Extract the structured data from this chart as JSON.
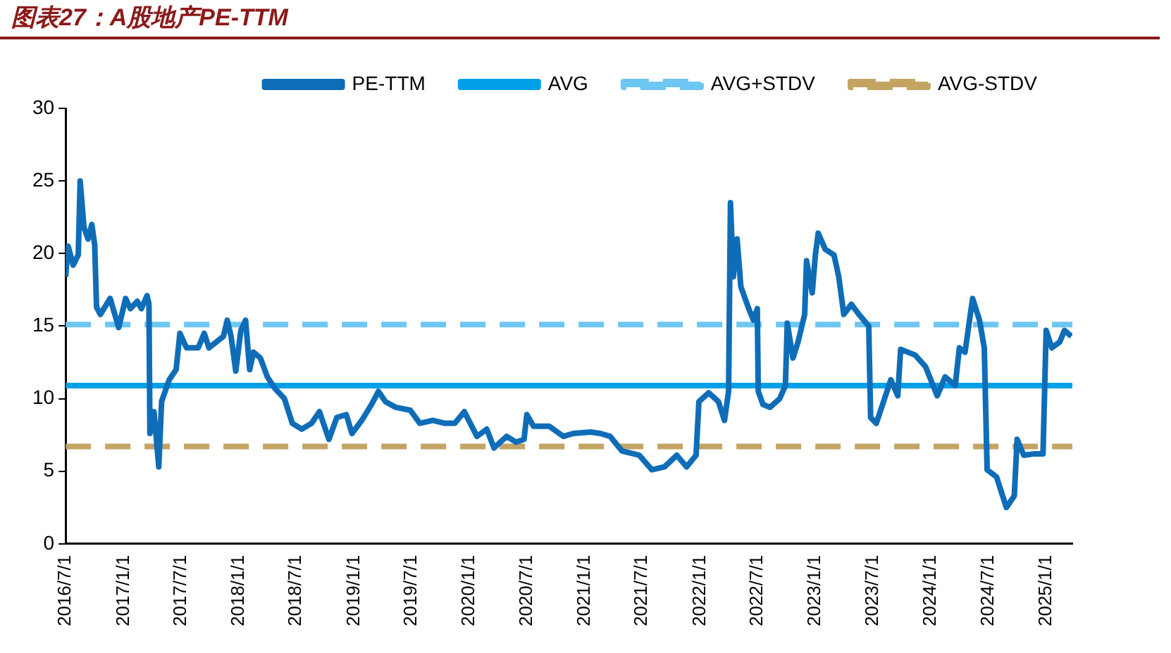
{
  "chart_data": {
    "type": "line",
    "title": "图表27：A股地产PE-TTM",
    "xlim": [
      "2016-07-01",
      "2025-03-25"
    ],
    "xticks": [
      {
        "value": "2016-07-01",
        "label": "2016/7/1"
      },
      {
        "value": "2017-01-01",
        "label": "2017/1/1"
      },
      {
        "value": "2017-07-01",
        "label": "2017/7/1"
      },
      {
        "value": "2018-01-01",
        "label": "2018/1/1"
      },
      {
        "value": "2018-07-01",
        "label": "2018/7/1"
      },
      {
        "value": "2019-01-01",
        "label": "2019/1/1"
      },
      {
        "value": "2019-07-01",
        "label": "2019/7/1"
      },
      {
        "value": "2020-01-01",
        "label": "2020/1/1"
      },
      {
        "value": "2020-07-01",
        "label": "2020/7/1"
      },
      {
        "value": "2021-01-01",
        "label": "2021/1/1"
      },
      {
        "value": "2021-07-01",
        "label": "2021/7/1"
      },
      {
        "value": "2022-01-01",
        "label": "2022/1/1"
      },
      {
        "value": "2022-07-01",
        "label": "2022/7/1"
      },
      {
        "value": "2023-01-01",
        "label": "2023/1/1"
      },
      {
        "value": "2023-07-01",
        "label": "2023/7/1"
      },
      {
        "value": "2024-01-01",
        "label": "2024/1/1"
      },
      {
        "value": "2024-07-01",
        "label": "2024/7/1"
      },
      {
        "value": "2025-01-01",
        "label": "2025/1/1"
      }
    ],
    "ylim": [
      0,
      30
    ],
    "yticks": [
      0,
      5,
      10,
      15,
      20,
      25,
      30
    ],
    "grid": false,
    "legend": "top",
    "series": [
      {
        "name": "PE-TTM",
        "color": "#0f6db8",
        "line_style": "solid",
        "x": [
          "2016-07-01",
          "2016-07-09",
          "2016-07-25",
          "2016-08-10",
          "2016-08-16",
          "2016-08-28",
          "2016-09-10",
          "2016-09-22",
          "2016-10-01",
          "2016-10-07",
          "2016-10-19",
          "2016-11-19",
          "2016-12-16",
          "2017-01-07",
          "2017-01-22",
          "2017-02-13",
          "2017-02-26",
          "2017-03-16",
          "2017-03-22",
          "2017-03-25",
          "2017-04-07",
          "2017-04-22",
          "2017-05-01",
          "2017-05-25",
          "2017-06-16",
          "2017-06-28",
          "2017-07-19",
          "2017-08-25",
          "2017-09-13",
          "2017-09-28",
          "2017-11-13",
          "2017-11-25",
          "2017-12-07",
          "2017-12-22",
          "2018-01-07",
          "2018-01-22",
          "2018-02-04",
          "2018-02-16",
          "2018-03-10",
          "2018-04-01",
          "2018-04-25",
          "2018-05-25",
          "2018-06-19",
          "2018-07-19",
          "2018-08-19",
          "2018-09-13",
          "2018-10-13",
          "2018-11-07",
          "2018-12-07",
          "2018-12-25",
          "2019-01-25",
          "2019-02-25",
          "2019-03-19",
          "2019-04-10",
          "2019-05-13",
          "2019-06-28",
          "2019-07-28",
          "2019-09-07",
          "2019-10-16",
          "2019-11-16",
          "2019-12-16",
          "2020-01-25",
          "2020-02-25",
          "2020-03-19",
          "2020-04-28",
          "2020-05-28",
          "2020-06-22",
          "2020-07-01",
          "2020-07-22",
          "2020-09-10",
          "2020-10-25",
          "2020-11-25",
          "2021-01-19",
          "2021-02-19",
          "2021-03-22",
          "2021-04-28",
          "2021-06-22",
          "2021-08-01",
          "2021-09-10",
          "2021-10-19",
          "2021-11-19",
          "2021-12-19",
          "2021-12-28",
          "2022-01-28",
          "2022-02-28",
          "2022-03-19",
          "2022-04-01",
          "2022-04-07",
          "2022-04-16",
          "2022-04-28",
          "2022-05-10",
          "2022-06-04",
          "2022-06-19",
          "2022-07-01",
          "2022-07-04",
          "2022-07-19",
          "2022-08-10",
          "2022-09-10",
          "2022-09-28",
          "2022-10-04",
          "2022-10-22",
          "2022-11-07",
          "2022-11-28",
          "2022-12-04",
          "2022-12-22",
          "2023-01-01",
          "2023-01-10",
          "2023-02-01",
          "2023-03-01",
          "2023-03-16",
          "2023-04-01",
          "2023-04-25",
          "2023-05-19",
          "2023-06-19",
          "2023-06-25",
          "2023-07-13",
          "2023-08-28",
          "2023-09-19",
          "2023-09-28",
          "2023-11-13",
          "2023-12-16",
          "2024-01-22",
          "2024-02-16",
          "2024-03-19",
          "2024-04-01",
          "2024-04-19",
          "2024-05-13",
          "2024-06-04",
          "2024-06-19",
          "2024-06-28",
          "2024-07-28",
          "2024-08-28",
          "2024-09-22",
          "2024-10-01",
          "2024-10-22",
          "2024-11-25",
          "2024-12-22",
          "2025-01-01",
          "2025-01-19",
          "2025-02-13",
          "2025-02-28",
          "2025-03-22"
        ],
        "values": [
          18.4,
          20.5,
          19.2,
          19.9,
          25.0,
          21.8,
          21.0,
          22.0,
          20.6,
          16.3,
          15.8,
          16.9,
          14.9,
          16.9,
          16.2,
          16.7,
          16.2,
          17.1,
          16.5,
          7.6,
          9.1,
          5.3,
          9.8,
          11.3,
          12.0,
          14.5,
          13.5,
          13.5,
          14.5,
          13.5,
          14.3,
          15.4,
          14.3,
          11.9,
          14.7,
          15.4,
          12.0,
          13.2,
          12.8,
          11.5,
          10.7,
          10.0,
          8.3,
          7.9,
          8.3,
          9.1,
          7.2,
          8.7,
          8.9,
          7.6,
          8.5,
          9.6,
          10.5,
          9.8,
          9.4,
          9.2,
          8.3,
          8.5,
          8.3,
          8.3,
          9.1,
          7.4,
          7.9,
          6.6,
          7.4,
          7.0,
          7.2,
          8.9,
          8.1,
          8.1,
          7.4,
          7.6,
          7.7,
          7.6,
          7.4,
          6.4,
          6.1,
          5.1,
          5.3,
          6.1,
          5.3,
          6.1,
          9.8,
          10.4,
          9.8,
          8.5,
          10.5,
          23.5,
          18.4,
          21.0,
          17.7,
          16.2,
          15.4,
          16.2,
          10.5,
          9.6,
          9.4,
          10.0,
          10.9,
          15.2,
          12.8,
          13.9,
          15.8,
          19.5,
          17.3,
          19.9,
          21.4,
          20.3,
          19.9,
          18.4,
          15.8,
          16.5,
          15.8,
          15.0,
          8.7,
          8.3,
          11.3,
          10.2,
          13.4,
          13.0,
          12.2,
          10.2,
          11.5,
          10.9,
          13.5,
          13.2,
          16.9,
          15.4,
          13.5,
          5.1,
          4.6,
          2.5,
          3.3,
          7.2,
          6.1,
          6.2,
          6.2,
          14.7,
          13.5,
          13.9,
          14.7,
          14.3
        ]
      },
      {
        "name": "AVG",
        "color": "#00a0e9",
        "line_style": "solid",
        "x": [
          "2016-07-01",
          "2025-03-25"
        ],
        "values": [
          10.9,
          10.9
        ]
      },
      {
        "name": "AVG+STDV",
        "color": "#6ec6f2",
        "line_style": "dashed",
        "x": [
          "2016-07-01",
          "2025-03-25"
        ],
        "values": [
          15.1,
          15.1
        ]
      },
      {
        "name": "AVG-STDV",
        "color": "#c3a463",
        "line_style": "dashed",
        "x": [
          "2016-07-01",
          "2025-03-25"
        ],
        "values": [
          6.7,
          6.7
        ]
      }
    ]
  }
}
